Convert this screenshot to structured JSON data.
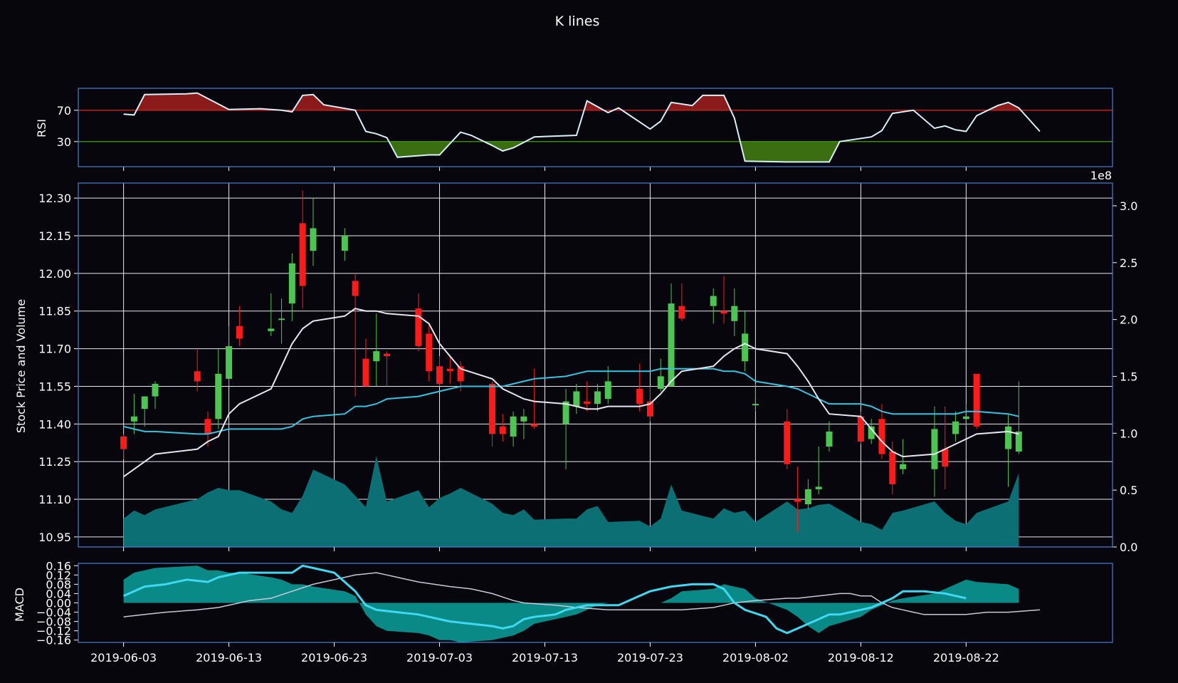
{
  "chart_data": {
    "type": "candlestick",
    "title": "K lines",
    "colors": {
      "background": "#07060d",
      "frame": "#4a7fd4",
      "up": "#4cc552",
      "down": "#ff1a1a",
      "volume": "#0b6f73",
      "ma_short": "#e6e6f0",
      "ma_long": "#36c3e0",
      "rsi_line": "#d8f0f8",
      "rsi_over": "#8b1a1a",
      "rsi_under": "#3a6e10",
      "macd_fill": "#0a8a86",
      "macd_line": "#40d8f0",
      "macd_signal": "#c8c8d8",
      "grid": "#e8e8f0"
    },
    "dates": [
      "2019-06-03",
      "2019-06-04",
      "2019-06-05",
      "2019-06-06",
      "2019-06-10",
      "2019-06-11",
      "2019-06-12",
      "2019-06-13",
      "2019-06-14",
      "2019-06-17",
      "2019-06-18",
      "2019-06-19",
      "2019-06-20",
      "2019-06-21",
      "2019-06-24",
      "2019-06-25",
      "2019-06-26",
      "2019-06-27",
      "2019-06-28",
      "2019-07-01",
      "2019-07-02",
      "2019-07-03",
      "2019-07-04",
      "2019-07-05",
      "2019-07-08",
      "2019-07-09",
      "2019-07-10",
      "2019-07-11",
      "2019-07-12",
      "2019-07-15",
      "2019-07-16",
      "2019-07-17",
      "2019-07-18",
      "2019-07-19",
      "2019-07-22",
      "2019-07-23",
      "2019-07-24",
      "2019-07-25",
      "2019-07-26",
      "2019-07-29",
      "2019-07-30",
      "2019-07-31",
      "2019-08-01",
      "2019-08-02",
      "2019-08-05",
      "2019-08-06",
      "2019-08-07",
      "2019-08-08",
      "2019-08-09",
      "2019-08-12",
      "2019-08-13",
      "2019-08-14",
      "2019-08-15",
      "2019-08-16",
      "2019-08-19",
      "2019-08-20",
      "2019-08-21",
      "2019-08-22",
      "2019-08-23",
      "2019-08-26",
      "2019-08-27"
    ],
    "open": [
      11.35,
      11.41,
      11.46,
      11.51,
      11.61,
      11.42,
      11.42,
      11.58,
      11.79,
      11.77,
      11.82,
      11.88,
      12.2,
      12.09,
      12.09,
      11.97,
      11.66,
      11.65,
      11.68,
      11.86,
      11.76,
      11.63,
      11.62,
      11.63,
      11.56,
      11.39,
      11.35,
      11.41,
      11.4,
      11.4,
      11.47,
      11.49,
      11.48,
      11.5,
      11.54,
      11.49,
      11.54,
      11.55,
      11.87,
      11.87,
      11.85,
      11.81,
      11.65,
      11.48,
      11.41,
      11.1,
      11.08,
      11.14,
      11.31,
      11.43,
      11.34,
      11.42,
      11.29,
      11.22,
      11.22,
      11.3,
      11.36,
      11.42,
      11.6,
      11.3,
      11.29
    ],
    "close": [
      11.3,
      11.43,
      11.51,
      11.56,
      11.57,
      11.36,
      11.6,
      11.71,
      11.74,
      11.78,
      11.82,
      12.04,
      11.95,
      12.18,
      12.15,
      11.91,
      11.55,
      11.69,
      11.67,
      11.71,
      11.61,
      11.56,
      11.61,
      11.57,
      11.36,
      11.36,
      11.43,
      11.43,
      11.39,
      11.49,
      11.53,
      11.48,
      11.53,
      11.57,
      11.48,
      11.43,
      11.59,
      11.88,
      11.82,
      11.91,
      11.84,
      11.87,
      11.76,
      11.48,
      11.24,
      11.09,
      11.14,
      11.15,
      11.37,
      11.33,
      11.39,
      11.28,
      11.16,
      11.24,
      11.38,
      11.23,
      11.41,
      11.43,
      11.39,
      11.39,
      11.37
    ],
    "high": [
      11.36,
      11.52,
      11.51,
      11.57,
      11.7,
      11.45,
      11.7,
      11.79,
      11.87,
      11.92,
      11.9,
      12.08,
      12.33,
      12.3,
      12.18,
      12.0,
      11.74,
      11.84,
      11.69,
      11.92,
      11.8,
      11.67,
      11.67,
      11.65,
      11.57,
      11.44,
      11.45,
      11.46,
      11.62,
      11.54,
      11.56,
      11.57,
      11.56,
      11.63,
      11.64,
      11.55,
      11.66,
      11.96,
      11.96,
      11.94,
      11.99,
      11.94,
      11.85,
      11.56,
      11.46,
      11.23,
      11.18,
      11.31,
      11.41,
      11.45,
      11.42,
      11.48,
      11.33,
      11.34,
      11.47,
      11.47,
      11.45,
      11.48,
      11.59,
      11.44,
      11.57
    ],
    "low": [
      11.26,
      11.36,
      11.39,
      11.46,
      11.53,
      11.31,
      11.38,
      11.55,
      11.71,
      11.75,
      11.72,
      11.81,
      11.86,
      12.03,
      12.05,
      11.51,
      11.55,
      11.55,
      11.55,
      11.69,
      11.57,
      11.55,
      11.56,
      11.53,
      11.31,
      11.33,
      11.31,
      11.34,
      11.38,
      11.22,
      11.44,
      11.45,
      11.45,
      11.48,
      11.45,
      11.41,
      11.53,
      11.55,
      11.81,
      11.8,
      11.8,
      11.75,
      11.61,
      11.45,
      11.22,
      10.97,
      11.06,
      11.12,
      11.29,
      11.32,
      11.32,
      11.26,
      11.12,
      11.2,
      11.11,
      11.14,
      11.33,
      11.39,
      11.38,
      11.15,
      11.28
    ],
    "volume": [
      0.25,
      0.32,
      0.28,
      0.33,
      0.42,
      0.48,
      0.52,
      0.5,
      0.5,
      0.4,
      0.33,
      0.3,
      0.45,
      0.68,
      0.55,
      0.45,
      0.35,
      0.8,
      0.4,
      0.5,
      0.35,
      0.43,
      0.47,
      0.52,
      0.38,
      0.3,
      0.28,
      0.33,
      0.24,
      0.25,
      0.25,
      0.33,
      0.36,
      0.22,
      0.23,
      0.18,
      0.25,
      0.55,
      0.32,
      0.25,
      0.34,
      0.3,
      0.32,
      0.22,
      0.4,
      0.33,
      0.34,
      0.37,
      0.38,
      0.22,
      0.2,
      0.15,
      0.3,
      0.32,
      0.4,
      0.3,
      0.23,
      0.2,
      0.3,
      0.4,
      0.65
    ],
    "ma_short": [
      11.19,
      11.22,
      11.25,
      11.28,
      11.3,
      11.33,
      11.35,
      11.44,
      11.48,
      11.54,
      11.63,
      11.72,
      11.78,
      11.81,
      11.83,
      11.86,
      11.85,
      11.85,
      11.84,
      11.83,
      11.8,
      11.72,
      11.67,
      11.62,
      11.58,
      11.54,
      11.52,
      11.5,
      11.49,
      11.48,
      11.47,
      11.46,
      11.46,
      11.47,
      11.47,
      11.48,
      11.52,
      11.57,
      11.61,
      11.63,
      11.67,
      11.7,
      11.72,
      11.7,
      11.68,
      11.63,
      11.57,
      11.5,
      11.44,
      11.43,
      11.38,
      11.33,
      11.29,
      11.27,
      11.28,
      11.3,
      11.32,
      11.34,
      11.36,
      11.37,
      11.36
    ],
    "ma_long": [
      11.39,
      11.38,
      11.37,
      11.37,
      11.36,
      11.36,
      11.37,
      11.38,
      11.38,
      11.38,
      11.38,
      11.39,
      11.42,
      11.43,
      11.44,
      11.47,
      11.47,
      11.48,
      11.5,
      11.51,
      11.52,
      11.53,
      11.54,
      11.55,
      11.55,
      11.55,
      11.56,
      11.57,
      11.58,
      11.59,
      11.6,
      11.61,
      11.61,
      11.61,
      11.61,
      11.61,
      11.62,
      11.62,
      11.62,
      11.62,
      11.61,
      11.61,
      11.6,
      11.57,
      11.55,
      11.54,
      11.52,
      11.5,
      11.48,
      11.48,
      11.47,
      11.45,
      11.44,
      11.44,
      11.44,
      11.44,
      11.44,
      11.45,
      11.45,
      11.44,
      11.43
    ],
    "rsi": [
      65,
      64,
      90,
      91,
      92,
      71,
      72,
      71,
      70,
      68,
      89,
      90,
      77,
      70,
      43,
      40,
      35,
      10,
      13,
      13,
      42,
      38,
      25,
      18,
      22,
      36,
      38,
      82,
      67,
      73,
      46,
      56,
      80,
      76,
      89,
      89,
      60,
      5,
      4,
      4,
      4,
      30,
      36,
      44,
      66,
      70,
      47,
      50,
      45,
      43,
      63,
      76,
      80,
      73,
      58,
      43
    ],
    "rsi_x": [
      0,
      1,
      2,
      6,
      7,
      10,
      13,
      14,
      15,
      16,
      17,
      18,
      19,
      22,
      23,
      24,
      25,
      26,
      29,
      30,
      32,
      33,
      35,
      36,
      37,
      39,
      43,
      44,
      46,
      47,
      50,
      51,
      52,
      54,
      55,
      57,
      58,
      59,
      63,
      64,
      67,
      68,
      71,
      72,
      73,
      75,
      77,
      78,
      79,
      80,
      81,
      83,
      84,
      85,
      86,
      87
    ],
    "macd_hist": [
      0.1,
      0.13,
      0.14,
      0.15,
      0.16,
      0.14,
      0.14,
      0.13,
      0.13,
      0.11,
      0.1,
      0.08,
      0.08,
      0.07,
      0.05,
      0.03,
      -0.05,
      -0.1,
      -0.12,
      -0.13,
      -0.14,
      -0.16,
      -0.16,
      -0.17,
      -0.16,
      -0.15,
      -0.14,
      -0.12,
      -0.09,
      -0.06,
      -0.05,
      -0.03,
      -0.01,
      0.0,
      0.0,
      0.0,
      0.0,
      0.02,
      0.05,
      0.06,
      0.08,
      0.07,
      0.06,
      0.02,
      -0.03,
      -0.06,
      -0.1,
      -0.13,
      -0.1,
      -0.06,
      -0.03,
      -0.01,
      0.01,
      0.02,
      0.04,
      0.06,
      0.08,
      0.1,
      0.09,
      0.08,
      0.06
    ],
    "macd": [
      0.03,
      0.07,
      0.08,
      0.1,
      0.09,
      0.11,
      0.13,
      0.13,
      0.13,
      0.13,
      0.16,
      0.15,
      0.13,
      0.05,
      -0.01,
      -0.03,
      -0.04,
      -0.05,
      -0.07,
      -0.08,
      -0.09,
      -0.1,
      -0.11,
      -0.1,
      -0.07,
      -0.06,
      -0.05,
      -0.03,
      -0.01,
      -0.01,
      -0.01,
      0.01,
      0.05,
      0.07,
      0.08,
      0.08,
      0.06,
      0.0,
      -0.03,
      -0.06,
      -0.11,
      -0.13,
      -0.11,
      -0.09,
      -0.07,
      -0.05,
      -0.05,
      -0.04,
      -0.03,
      -0.02,
      0.0,
      0.02,
      0.05,
      0.05,
      0.04,
      0.03,
      0.02
    ],
    "macd_x": [
      0,
      2,
      4,
      6,
      8,
      9,
      11,
      13,
      14,
      16,
      17,
      18,
      20,
      22,
      23,
      24,
      26,
      28,
      30,
      31,
      33,
      35,
      36,
      37,
      38,
      39,
      41,
      42,
      44,
      45,
      47,
      48,
      50,
      52,
      54,
      56,
      57,
      58,
      59,
      61,
      62,
      63,
      64,
      65,
      66,
      67,
      68,
      69,
      70,
      71,
      72,
      73,
      74,
      76,
      78,
      79,
      80
    ],
    "macd_signal": [
      -0.06,
      -0.05,
      -0.04,
      -0.03,
      -0.02,
      0.0,
      0.01,
      0.02,
      0.05,
      0.08,
      0.1,
      0.11,
      0.12,
      0.13,
      0.12,
      0.11,
      0.09,
      0.07,
      0.06,
      0.04,
      0.01,
      0.0,
      -0.01,
      -0.02,
      -0.03,
      -0.03,
      -0.03,
      -0.03,
      -0.02,
      0.0,
      0.01,
      0.02,
      0.02,
      0.03,
      0.04,
      0.04,
      0.03,
      0.03,
      0.0,
      -0.02,
      -0.03,
      -0.04,
      -0.05,
      -0.05,
      -0.05,
      -0.05,
      -0.04,
      -0.04,
      -0.03
    ],
    "macd_signal_x": [
      0,
      2,
      4,
      7,
      9,
      11,
      12,
      14,
      16,
      18,
      20,
      21,
      22,
      24,
      25,
      26,
      28,
      31,
      33,
      35,
      37,
      38,
      41,
      43,
      46,
      48,
      49,
      53,
      56,
      58,
      60,
      63,
      64,
      66,
      68,
      69,
      70,
      71,
      72,
      73,
      74,
      75,
      76,
      77,
      78,
      80,
      82,
      84,
      87
    ],
    "price_axis": {
      "ylabel": "Stock Price and Volume",
      "ylim": [
        10.91,
        12.36
      ],
      "ticks": [
        "10.95",
        "11.10",
        "11.25",
        "11.40",
        "11.55",
        "11.70",
        "11.85",
        "12.00",
        "12.15",
        "12.30"
      ]
    },
    "volume_axis": {
      "ylim": [
        0,
        3.2
      ],
      "ticks": [
        "0.0",
        "0.5",
        "1.0",
        "1.5",
        "2.0",
        "2.5",
        "3.0"
      ],
      "offset": "1e8"
    },
    "rsi_axis": {
      "ylabel": "RSI",
      "ylim": [
        -2,
        98
      ],
      "ticks": [
        "30",
        "70"
      ],
      "overbought": 70,
      "oversold": 30
    },
    "macd_axis": {
      "ylabel": "MACD",
      "ylim": [
        -0.17,
        0.17
      ],
      "ticks": [
        "0.16",
        "0.12",
        "0.08",
        "0.04",
        "0.00",
        "−0.04",
        "−0.08",
        "−0.12",
        "−0.16"
      ]
    },
    "x_ticks": [
      "2019-06-03",
      "2019-06-13",
      "2019-06-23",
      "2019-07-03",
      "2019-07-13",
      "2019-07-23",
      "2019-08-02",
      "2019-08-12",
      "2019-08-22"
    ],
    "grid": true
  }
}
